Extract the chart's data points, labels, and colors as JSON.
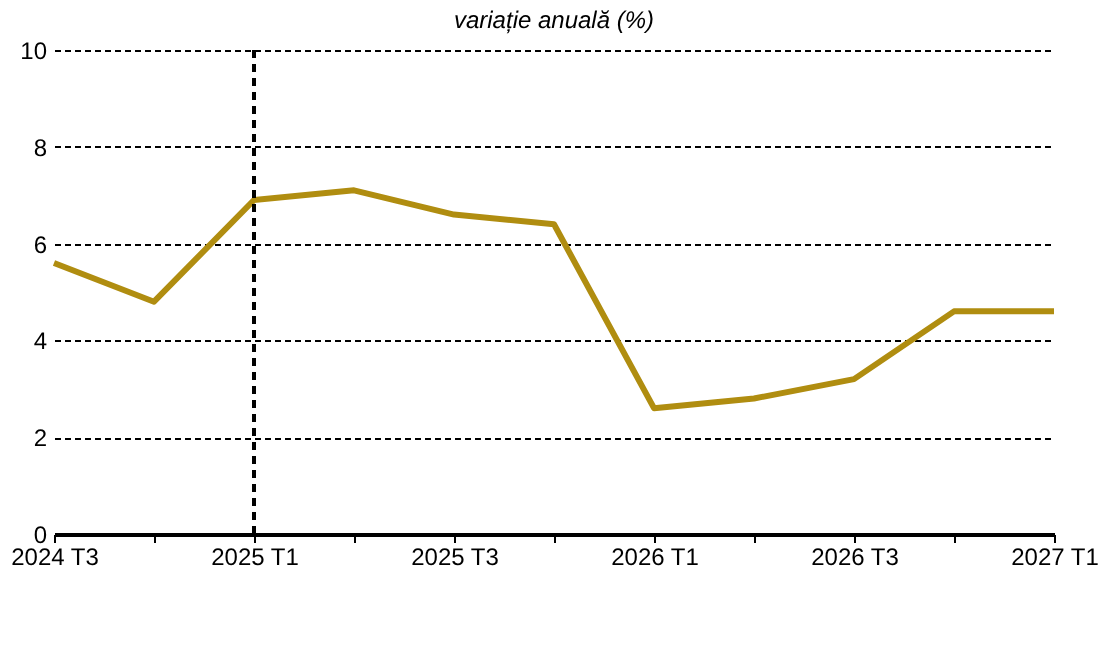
{
  "chart_data": {
    "type": "line",
    "title": "variație anuală (%)",
    "categories": [
      "2024 T3",
      null,
      "2025 T1",
      null,
      "2025 T3",
      null,
      "2026 T1",
      null,
      "2026 T3",
      null,
      "2027 T1"
    ],
    "series": [
      {
        "color": "#b08d10",
        "values": [
          5.6,
          4.8,
          6.9,
          7.1,
          6.6,
          6.4,
          2.6,
          2.8,
          3.2,
          4.6,
          4.6
        ]
      }
    ],
    "ylim": [
      0,
      10
    ],
    "yticks": [
      0,
      2,
      4,
      6,
      8,
      10
    ],
    "grid": "y",
    "marker": "none",
    "line_style": "solid",
    "ref_lines": [
      {
        "axis": "x",
        "value": "2025 T1",
        "color": "#000000",
        "line_style": "dashed"
      }
    ]
  }
}
